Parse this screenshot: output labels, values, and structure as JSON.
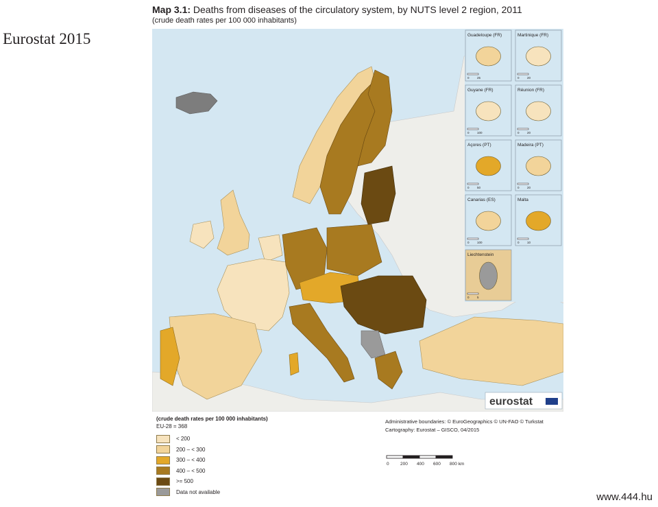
{
  "side_label": "Eurostat 2015",
  "watermark": "www.444.hu",
  "map": {
    "title_label": "Map 3.1:",
    "title_text": "Deaths from diseases of the circulatory system, by NUTS level 2 region, 2011",
    "subtitle": "(crude death rates per 100 000 inhabitants)",
    "brand": "eurostat",
    "insets": [
      {
        "name": "Guadeloupe (FR)",
        "scale": [
          "0",
          "25"
        ],
        "color": "#f2d49a"
      },
      {
        "name": "Martinique (FR)",
        "scale": [
          "0",
          "20"
        ],
        "color": "#f7e3bd"
      },
      {
        "name": "Guyane (FR)",
        "scale": [
          "0",
          "100"
        ],
        "color": "#f7e3bd"
      },
      {
        "name": "Réunion (FR)",
        "scale": [
          "0",
          "20"
        ],
        "color": "#f7e3bd"
      },
      {
        "name": "Açores (PT)",
        "scale": [
          "0",
          "50"
        ],
        "color": "#e3a829"
      },
      {
        "name": "Madeira (PT)",
        "scale": [
          "0",
          "20"
        ],
        "color": "#f2d49a"
      },
      {
        "name": "Canarias (ES)",
        "scale": [
          "0",
          "100"
        ],
        "color": "#f2d49a"
      },
      {
        "name": "Malta",
        "scale": [
          "0",
          "10"
        ],
        "color": "#e3a829"
      },
      {
        "name": "Liechtenstein",
        "scale": [
          "0",
          "5"
        ],
        "color": "#9a9a9a"
      }
    ]
  },
  "legend": {
    "header": "(crude death rates per 100 000 inhabitants)",
    "eu_value": "EU-28 = 368",
    "classes": [
      {
        "label": "< 200",
        "color": "#f7e3bd"
      },
      {
        "label": "200 – < 300",
        "color": "#f2d49a"
      },
      {
        "label": "300 – < 400",
        "color": "#e3a829"
      },
      {
        "label": "400 – < 500",
        "color": "#a87a20"
      },
      {
        "label": ">= 500",
        "color": "#6b4a12"
      },
      {
        "label": "Data not available",
        "color": "#9a9a9a"
      }
    ]
  },
  "credits": {
    "boundaries": "Administrative boundaries: © EuroGeographics © UN-FAO © Turkstat",
    "cartography": "Cartography: Eurostat – GISCO, 04/2015"
  },
  "scale_bar": {
    "ticks": [
      "0",
      "200",
      "400",
      "600",
      "800 km"
    ]
  }
}
